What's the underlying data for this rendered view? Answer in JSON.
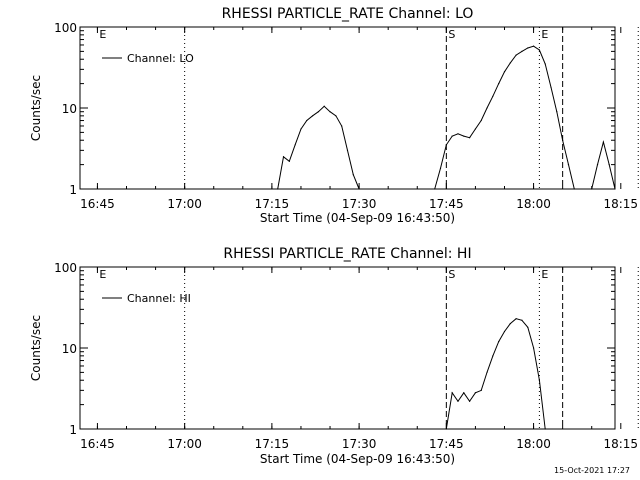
{
  "footer": {
    "timestamp": "15-Oct-2021 17:27"
  },
  "chart_data": [
    {
      "type": "line",
      "title": "RHESSI PARTICLE_RATE Channel: LO",
      "xlabel": "Start Time (04-Sep-09 16:43:50)",
      "ylabel": "Counts/sec",
      "yscale": "log",
      "ylim": [
        1,
        100
      ],
      "xlim_minutes": [
        -1.83,
        90.17
      ],
      "xticks": [
        "16:45",
        "17:00",
        "17:15",
        "17:30",
        "17:45",
        "18:00",
        "18:15"
      ],
      "yticks": [
        "1",
        "10",
        "100"
      ],
      "legend": "Channel: LO",
      "legend_position": "top-left",
      "markers": [
        {
          "label": "E",
          "time": "16:45",
          "style": "none"
        },
        {
          "label": "",
          "time": "17:00",
          "style": "dotted"
        },
        {
          "label": "S",
          "time": "17:45",
          "style": "dashed"
        },
        {
          "label": "E",
          "time": "18:01",
          "style": "dotted"
        },
        {
          "label": "",
          "time": "18:05",
          "style": "dashed"
        },
        {
          "label": "",
          "time": "18:18",
          "style": "dotted"
        }
      ],
      "series": [
        {
          "name": "Channel: LO",
          "points": [
            [
              "17:16",
              1
            ],
            [
              "17:17",
              2.5
            ],
            [
              "17:18",
              2.2
            ],
            [
              "17:19",
              3.5
            ],
            [
              "17:20",
              5.5
            ],
            [
              "17:21",
              7
            ],
            [
              "17:22",
              8
            ],
            [
              "17:23",
              9
            ],
            [
              "17:24",
              10.5
            ],
            [
              "17:25",
              9
            ],
            [
              "17:26",
              8
            ],
            [
              "17:27",
              6
            ],
            [
              "17:28",
              3
            ],
            [
              "17:29",
              1.5
            ],
            [
              "17:30",
              1
            ],
            [
              null,
              null
            ],
            [
              "17:43",
              1
            ],
            [
              "17:44",
              1.8
            ],
            [
              "17:45",
              3.5
            ],
            [
              "17:46",
              4.5
            ],
            [
              "17:47",
              4.8
            ],
            [
              "17:48",
              4.5
            ],
            [
              "17:49",
              4.3
            ],
            [
              "17:50",
              5.5
            ],
            [
              "17:51",
              7
            ],
            [
              "17:52",
              10
            ],
            [
              "17:53",
              14
            ],
            [
              "17:54",
              20
            ],
            [
              "17:55",
              28
            ],
            [
              "17:56",
              36
            ],
            [
              "17:57",
              45
            ],
            [
              "17:58",
              50
            ],
            [
              "17:59",
              55
            ],
            [
              "18:00",
              58
            ],
            [
              "18:01",
              52
            ],
            [
              "18:02",
              35
            ],
            [
              "18:03",
              18
            ],
            [
              "18:04",
              9
            ],
            [
              "18:05",
              4
            ],
            [
              "18:06",
              2
            ],
            [
              "18:07",
              1
            ],
            [
              null,
              null
            ],
            [
              "18:10",
              1
            ],
            [
              "18:11",
              2
            ],
            [
              "18:12",
              3.8
            ],
            [
              "18:13",
              2
            ],
            [
              "18:14",
              1
            ]
          ]
        }
      ]
    },
    {
      "type": "line",
      "title": "RHESSI PARTICLE_RATE Channel: HI",
      "xlabel": "Start Time (04-Sep-09 16:43:50)",
      "ylabel": "Counts/sec",
      "yscale": "log",
      "ylim": [
        1,
        100
      ],
      "xlim_minutes": [
        -1.83,
        90.17
      ],
      "xticks": [
        "16:45",
        "17:00",
        "17:15",
        "17:30",
        "17:45",
        "18:00",
        "18:15"
      ],
      "yticks": [
        "1",
        "10",
        "100"
      ],
      "legend": "Channel: HI",
      "legend_position": "top-left",
      "markers": [
        {
          "label": "E",
          "time": "16:45",
          "style": "none"
        },
        {
          "label": "",
          "time": "17:00",
          "style": "dotted"
        },
        {
          "label": "S",
          "time": "17:45",
          "style": "dashed"
        },
        {
          "label": "E",
          "time": "18:01",
          "style": "dotted"
        },
        {
          "label": "",
          "time": "18:05",
          "style": "dashed"
        },
        {
          "label": "",
          "time": "18:18",
          "style": "dotted"
        }
      ],
      "series": [
        {
          "name": "Channel: HI",
          "points": [
            [
              "17:45",
              1
            ],
            [
              "17:46",
              2.8
            ],
            [
              "17:47",
              2.2
            ],
            [
              "17:48",
              2.8
            ],
            [
              "17:49",
              2.2
            ],
            [
              "17:50",
              2.8
            ],
            [
              "17:51",
              3
            ],
            [
              "17:52",
              5
            ],
            [
              "17:53",
              8
            ],
            [
              "17:54",
              12
            ],
            [
              "17:55",
              16
            ],
            [
              "17:56",
              20
            ],
            [
              "17:57",
              23
            ],
            [
              "17:58",
              22
            ],
            [
              "17:59",
              18
            ],
            [
              "18:00",
              10
            ],
            [
              "18:01",
              4
            ],
            [
              "18:02",
              1
            ]
          ]
        }
      ]
    }
  ]
}
